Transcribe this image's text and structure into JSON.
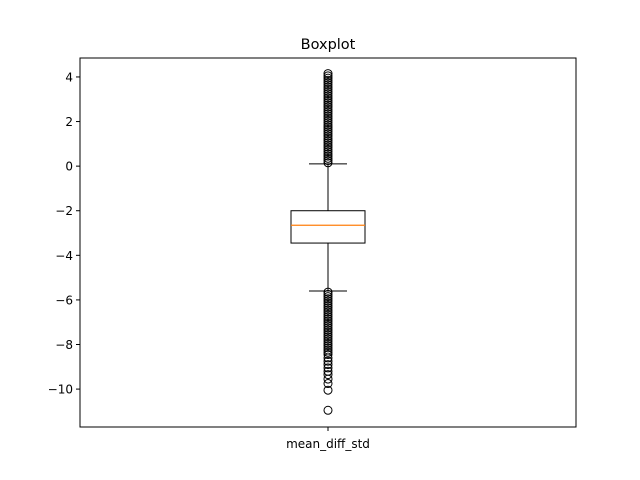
{
  "chart_data": {
    "type": "boxplot",
    "title": "Boxplot",
    "xlabel": "",
    "ylabel": "",
    "categories": [
      "mean_diff_std"
    ],
    "ylim": [
      -11.7,
      4.85
    ],
    "yticks": [
      4,
      2,
      0,
      -2,
      -4,
      -6,
      -8,
      -10
    ],
    "ytick_labels": [
      "4",
      "2",
      "0",
      "−2",
      "−4",
      "−6",
      "−8",
      "−10"
    ],
    "grid": false,
    "series": [
      {
        "box": {
          "whisker_high": 0.1,
          "q3": -2.0,
          "median": -2.65,
          "q1": -3.45,
          "whisker_low": -5.6
        },
        "outliers_high": [
          0.15,
          0.25,
          0.35,
          0.45,
          0.55,
          0.65,
          0.75,
          0.85,
          0.95,
          1.05,
          1.15,
          1.25,
          1.35,
          1.45,
          1.55,
          1.65,
          1.75,
          1.85,
          1.95,
          2.05,
          2.15,
          2.25,
          2.35,
          2.45,
          2.55,
          2.65,
          2.75,
          2.85,
          2.95,
          3.05,
          3.15,
          3.25,
          3.35,
          3.45,
          3.55,
          3.65,
          3.75,
          3.85,
          3.95,
          4.05,
          4.15
        ],
        "outliers_low": [
          -5.65,
          -5.75,
          -5.85,
          -5.95,
          -6.05,
          -6.15,
          -6.25,
          -6.35,
          -6.45,
          -6.55,
          -6.65,
          -6.75,
          -6.85,
          -6.95,
          -7.05,
          -7.15,
          -7.25,
          -7.35,
          -7.45,
          -7.55,
          -7.65,
          -7.75,
          -7.85,
          -7.95,
          -8.05,
          -8.15,
          -8.25,
          -8.35,
          -8.45,
          -8.6,
          -8.75,
          -8.9,
          -9.05,
          -9.2,
          -9.35,
          -9.55,
          -9.75,
          -10.05,
          -10.95
        ]
      }
    ],
    "colors": {
      "median": "#ff7f0e",
      "box": "#000000",
      "outlier": "#000000"
    }
  }
}
